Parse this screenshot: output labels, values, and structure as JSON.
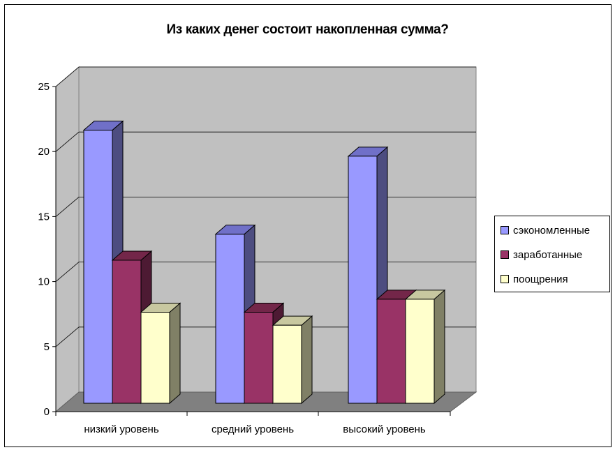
{
  "chart_data": {
    "type": "bar",
    "title": "Из каких денег состоит накопленная сумма?",
    "categories": [
      "низкий уровень",
      "средний уровень",
      "высокий уровень"
    ],
    "series": [
      {
        "name": "сэкономленные",
        "values": [
          21,
          13,
          19
        ],
        "color": "#9999ff",
        "side": "#4d4d80",
        "top": "#7070c8"
      },
      {
        "name": "заработанные",
        "values": [
          11,
          7,
          8
        ],
        "color": "#993366",
        "side": "#4d1a33",
        "top": "#732649"
      },
      {
        "name": "поощрения",
        "values": [
          7,
          6,
          8
        ],
        "color": "#ffffcc",
        "side": "#808066",
        "top": "#c8c8a0"
      }
    ],
    "yticks": [
      0,
      5,
      10,
      15,
      20,
      25
    ],
    "ylim": [
      0,
      25
    ],
    "grid": true,
    "legend": "right"
  }
}
